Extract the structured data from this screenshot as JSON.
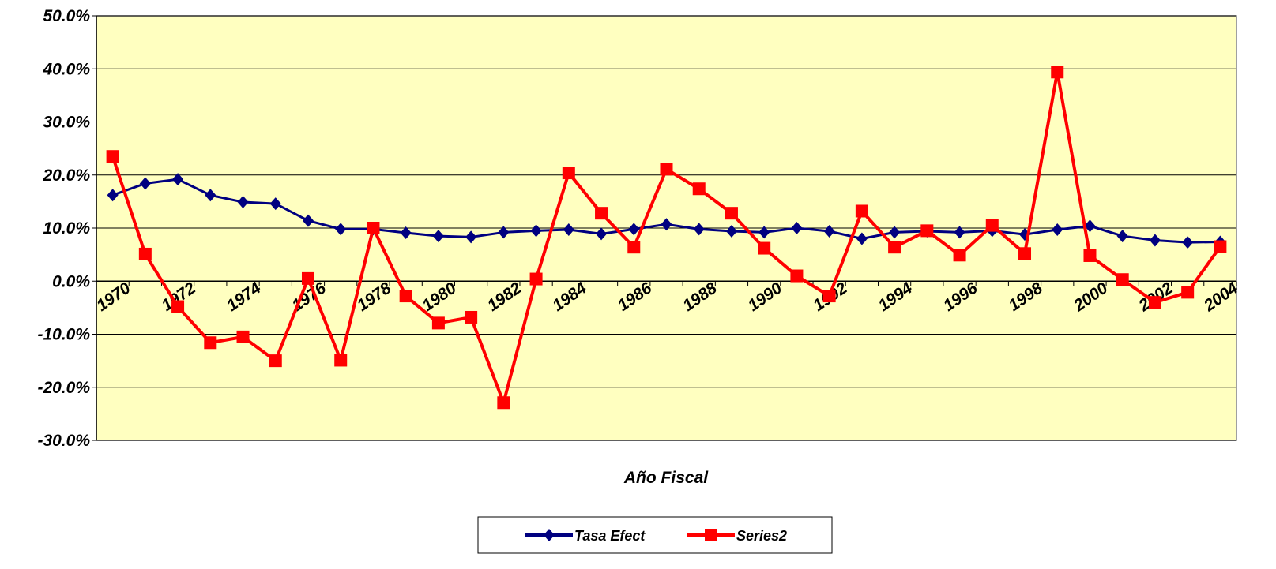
{
  "chart_data": {
    "type": "line",
    "x_label": "Año Fiscal",
    "categories": [
      "1970",
      null,
      "1972",
      null,
      "1974",
      null,
      "1976",
      null,
      "1978",
      null,
      "1980",
      null,
      "1982",
      null,
      "1984",
      null,
      "1986",
      null,
      "1988",
      null,
      "1990",
      null,
      "1992",
      null,
      "1994",
      null,
      "1996",
      null,
      "1998",
      null,
      "2000",
      null,
      "2002",
      null,
      "2004"
    ],
    "series": [
      {
        "name": "Tasa Efect",
        "color": "#000080",
        "marker": "diamond",
        "values": [
          16.2,
          18.4,
          19.2,
          16.2,
          14.9,
          14.6,
          11.4,
          9.8,
          9.8,
          9.1,
          8.5,
          8.3,
          9.2,
          9.5,
          9.7,
          8.9,
          9.8,
          10.7,
          9.8,
          9.4,
          9.2,
          10.0,
          9.4,
          8.0,
          9.2,
          9.4,
          9.2,
          9.5,
          8.8,
          9.7,
          10.4,
          8.5,
          7.7,
          7.3,
          7.4
        ]
      },
      {
        "name": "Series2",
        "color": "#ff0000",
        "marker": "square",
        "values": [
          23.5,
          5.1,
          -4.8,
          -11.6,
          -10.5,
          -15.0,
          0.5,
          -14.9,
          10.0,
          -2.8,
          -7.9,
          -6.8,
          -22.9,
          0.4,
          20.4,
          12.8,
          6.4,
          21.1,
          17.4,
          12.8,
          6.2,
          1.0,
          -2.8,
          13.2,
          6.4,
          9.5,
          4.9,
          10.5,
          5.2,
          39.4,
          4.8,
          0.3,
          -4.0,
          -2.1,
          6.5
        ]
      }
    ],
    "ylim": [
      -30,
      50
    ],
    "yticks": [
      {
        "value": -30,
        "label": "-30.0%"
      },
      {
        "value": -20,
        "label": "-20.0%"
      },
      {
        "value": -10,
        "label": "-10.0%"
      },
      {
        "value": 0,
        "label": "0.0%"
      },
      {
        "value": 10,
        "label": "10.0%"
      },
      {
        "value": 20,
        "label": "20.0%"
      },
      {
        "value": 30,
        "label": "30.0%"
      },
      {
        "value": 40,
        "label": "40.0%"
      },
      {
        "value": 50,
        "label": "50.0%"
      }
    ],
    "grid": true,
    "plot_background": "#ffffc0",
    "legend": "bottom"
  }
}
